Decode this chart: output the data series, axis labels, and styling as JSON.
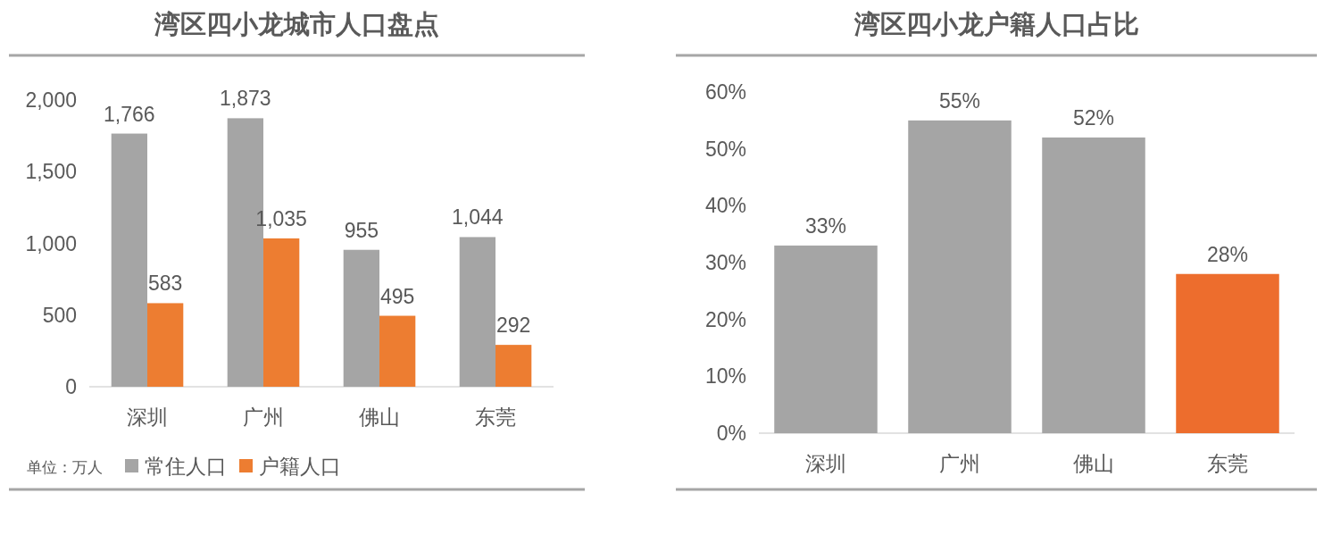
{
  "chart_data": [
    {
      "type": "bar",
      "title": "湾区四小龙城市人口盘点",
      "categories": [
        "深圳",
        "广州",
        "佛山",
        "东莞"
      ],
      "series": [
        {
          "name": "常住人口",
          "color": "#a5a5a5",
          "values": [
            1766,
            1873,
            955,
            1044
          ],
          "value_labels": [
            "1,766",
            "1,873",
            "955",
            "1,044"
          ]
        },
        {
          "name": "户籍人口",
          "color": "#ed7d31",
          "values": [
            583,
            1035,
            495,
            292
          ],
          "value_labels": [
            "583",
            "1,035",
            "495",
            "292"
          ]
        }
      ],
      "ylim": [
        0,
        2000
      ],
      "yticks": [
        0,
        500,
        {
          "value": 1000,
          "label": "1,000"
        },
        {
          "value": 1500,
          "label": "1,500"
        },
        {
          "value": 2000,
          "label": "2,000"
        }
      ],
      "grid": false,
      "legend": "bottom",
      "annotations": [
        "单位：万人"
      ]
    },
    {
      "type": "bar",
      "title": "湾区四小龙户籍人口占比",
      "categories": [
        "深圳",
        "广州",
        "佛山",
        "东莞"
      ],
      "values": [
        33,
        55,
        52,
        28
      ],
      "colors": [
        "#a5a5a5",
        "#a5a5a5",
        "#a5a5a5",
        "#ed6d2d"
      ],
      "value_labels": [
        "33%",
        "55%",
        "52%",
        "28%"
      ],
      "ylim": [
        0,
        60
      ],
      "yticks": [
        {
          "value": 0,
          "label": "0%"
        },
        {
          "value": 10,
          "label": "10%"
        },
        {
          "value": 20,
          "label": "20%"
        },
        {
          "value": 30,
          "label": "30%"
        },
        {
          "value": 40,
          "label": "40%"
        },
        {
          "value": 50,
          "label": "50%"
        },
        {
          "value": 60,
          "label": "60%"
        }
      ],
      "grid": false,
      "legend": false
    }
  ]
}
